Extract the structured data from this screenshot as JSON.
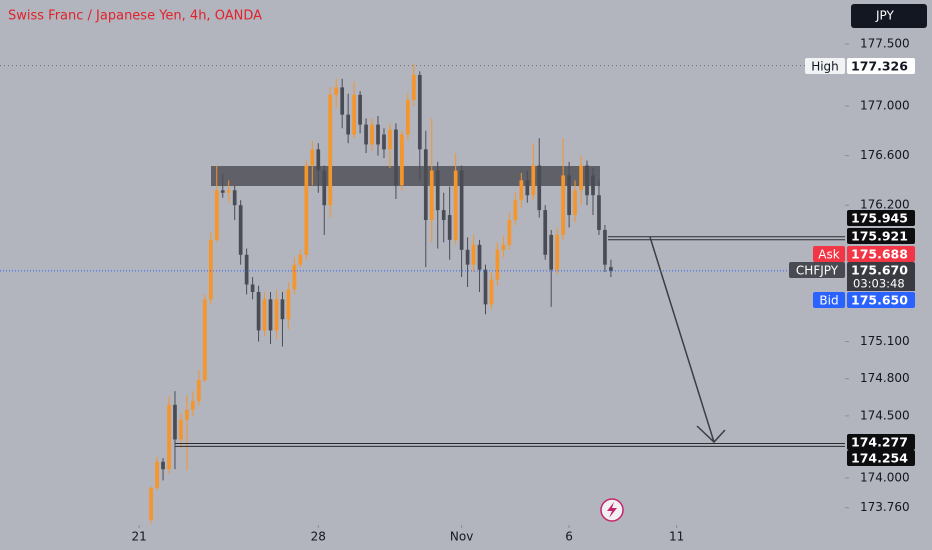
{
  "chart_data": {
    "type": "candlestick",
    "title": "Swiss Franc / Japanese Yen, 4h, OANDA",
    "currency": "JPY",
    "up_color": "#f5952a",
    "down_color": "#4a4c55",
    "open": [
      173.66,
      173.92,
      174.13,
      174.07,
      174.59,
      174.31,
      174.47,
      174.55,
      174.62,
      174.79,
      175.44,
      175.92,
      176.32,
      176.3,
      176.32,
      176.2,
      175.8,
      175.56,
      175.5,
      175.19,
      175.44,
      175.19,
      175.44,
      175.28,
      175.52,
      175.72,
      175.8,
      176.52,
      176.65,
      176.48,
      176.2,
      177.09,
      177.15,
      176.93,
      176.77,
      177.09,
      176.85,
      176.69,
      176.85,
      176.77,
      176.65,
      176.81,
      176.36,
      176.77,
      177.05,
      177.25,
      176.65,
      176.08,
      176.48,
      176.16,
      176.12,
      175.92,
      176.48,
      175.84,
      175.72,
      175.88,
      175.68,
      175.4,
      175.6,
      175.84,
      175.88,
      176.08,
      176.24,
      176.4,
      176.28,
      176.52,
      176.16,
      175.96,
      175.68,
      175.96,
      176.44,
      176.12,
      176.32,
      176.52,
      176.44,
      176.28,
      176.0,
      175.7
    ],
    "high": [
      173.93,
      174.17,
      174.16,
      174.66,
      174.7,
      174.52,
      174.67,
      174.7,
      174.87,
      175.48,
      175.98,
      176.52,
      176.45,
      176.4,
      176.36,
      176.24,
      175.85,
      175.62,
      175.55,
      175.5,
      175.5,
      175.52,
      175.5,
      175.58,
      175.78,
      175.84,
      176.56,
      176.72,
      176.7,
      176.52,
      177.15,
      177.22,
      177.22,
      177.1,
      177.2,
      177.12,
      176.9,
      176.9,
      176.92,
      176.82,
      176.86,
      176.86,
      176.8,
      177.1,
      177.34,
      177.28,
      176.8,
      176.9,
      176.55,
      176.3,
      176.35,
      176.62,
      176.52,
      175.94,
      175.96,
      175.92,
      175.72,
      175.66,
      175.9,
      175.95,
      176.14,
      176.3,
      176.46,
      176.48,
      176.7,
      176.74,
      176.2,
      176.0,
      176.02,
      176.74,
      176.55,
      176.4,
      176.6,
      176.56,
      176.5,
      176.4,
      176.04,
      175.76
    ],
    "low": [
      173.63,
      173.9,
      173.98,
      174.03,
      174.07,
      174.24,
      174.06,
      174.5,
      174.58,
      174.77,
      175.4,
      175.9,
      176.26,
      176.22,
      176.08,
      175.72,
      175.48,
      175.44,
      175.1,
      175.14,
      175.08,
      175.12,
      175.06,
      175.2,
      175.48,
      175.7,
      175.76,
      176.36,
      176.3,
      175.96,
      176.1,
      176.98,
      176.82,
      176.7,
      176.74,
      176.78,
      176.62,
      176.64,
      176.6,
      176.58,
      176.5,
      176.25,
      176.32,
      176.72,
      177.0,
      176.4,
      175.7,
      175.9,
      175.85,
      175.9,
      175.76,
      175.88,
      175.62,
      175.54,
      175.66,
      175.5,
      175.32,
      175.36,
      175.55,
      175.78,
      175.84,
      176.04,
      176.18,
      176.22,
      176.24,
      176.1,
      175.76,
      175.38,
      175.64,
      175.92,
      176.02,
      176.06,
      176.2,
      176.2,
      176.12,
      175.96,
      175.66,
      175.62
    ],
    "close": [
      173.92,
      174.13,
      174.07,
      174.59,
      174.31,
      174.47,
      174.55,
      174.62,
      174.79,
      175.44,
      175.92,
      176.32,
      176.3,
      176.32,
      176.2,
      175.8,
      175.56,
      175.5,
      175.19,
      175.44,
      175.19,
      175.44,
      175.28,
      175.52,
      175.72,
      175.8,
      176.52,
      176.65,
      176.48,
      176.2,
      177.09,
      177.15,
      176.93,
      176.77,
      177.09,
      176.85,
      176.69,
      176.85,
      176.69,
      176.65,
      176.81,
      176.36,
      176.77,
      177.05,
      177.25,
      176.65,
      176.08,
      176.48,
      176.16,
      176.08,
      175.92,
      176.48,
      175.84,
      175.72,
      175.88,
      175.68,
      175.4,
      175.6,
      175.84,
      175.88,
      176.08,
      176.24,
      176.4,
      176.28,
      176.52,
      176.16,
      175.8,
      175.68,
      175.96,
      176.44,
      176.12,
      176.32,
      176.52,
      176.28,
      176.28,
      176.0,
      175.72,
      175.67
    ],
    "xlim": [
      -25.3,
      116.2
    ],
    "xticks": [
      {
        "value": -2,
        "label": "21"
      },
      28,
      {
        "value": 52,
        "label": "Nov"
      },
      {
        "value": 70,
        "label": "6"
      },
      {
        "value": 88,
        "label": "11"
      }
    ],
    "ylim": [
      173.62,
      177.855
    ],
    "yticks": [
      {
        "value": 177.5,
        "label": "177.500"
      },
      {
        "value": 177.0,
        "label": "177.000"
      },
      {
        "value": 176.6,
        "label": "176.600"
      },
      {
        "value": 176.2,
        "label": "176.200"
      },
      {
        "value": 175.1,
        "label": "175.100"
      },
      {
        "value": 174.8,
        "label": "174.800"
      },
      {
        "value": 174.5,
        "label": "174.500"
      },
      {
        "value": 174.0,
        "label": "174.000"
      },
      {
        "value": 173.76,
        "label": "173.760"
      }
    ],
    "levels": [
      {
        "tag": "High",
        "price": 177.326
      },
      {
        "price": 175.945
      },
      {
        "price": 175.921
      },
      {
        "tag": "Ask",
        "price": 175.688
      },
      {
        "tag": "CHFJPY",
        "price": {
          "value": 175.67,
          "label": "175.670"
        },
        "countdown": "03:03:48"
      },
      {
        "tag": "Bid",
        "price": {
          "value": 175.65,
          "label": "175.650"
        }
      },
      {
        "price": 174.277
      },
      {
        "price": 174.254
      }
    ]
  }
}
